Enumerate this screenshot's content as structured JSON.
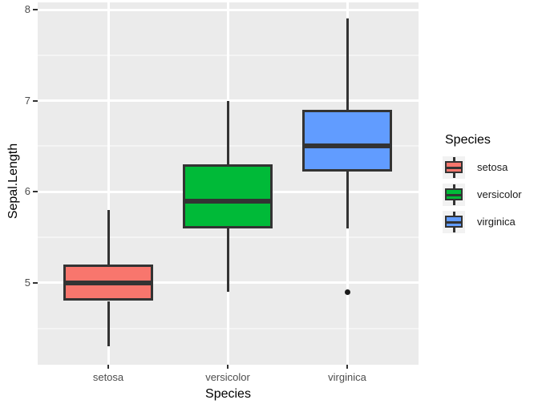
{
  "chart_data": {
    "type": "boxplot",
    "title": "",
    "xlabel": "Species",
    "ylabel": "Sepal.Length",
    "categories": [
      "setosa",
      "versicolor",
      "virginica"
    ],
    "y_ticks": [
      5,
      6,
      7,
      8
    ],
    "y_minor_ticks": [
      4.5,
      5.5,
      6.5,
      7.5
    ],
    "ylim": [
      4.1,
      8.08
    ],
    "grid": "on",
    "legend_position": "right",
    "series": [
      {
        "name": "setosa",
        "fill": "#F8766D",
        "whisker_low": 4.3,
        "q1": 4.8,
        "median": 5.0,
        "q3": 5.2,
        "whisker_high": 5.8,
        "outliers": []
      },
      {
        "name": "versicolor",
        "fill": "#00BA38",
        "whisker_low": 4.9,
        "q1": 5.6,
        "median": 5.9,
        "q3": 6.3,
        "whisker_high": 7.0,
        "outliers": []
      },
      {
        "name": "virginica",
        "fill": "#619CFF",
        "whisker_low": 5.6,
        "q1": 6.225,
        "median": 6.5,
        "q3": 6.9,
        "whisker_high": 7.9,
        "outliers": [
          4.9
        ]
      }
    ],
    "legend": {
      "title": "Species",
      "entries": [
        {
          "label": "setosa",
          "fill": "#F8766D"
        },
        {
          "label": "versicolor",
          "fill": "#00BA38"
        },
        {
          "label": "virginica",
          "fill": "#619CFF"
        }
      ]
    },
    "colors": {
      "panel_bg": "#EBEBEB",
      "grid_major": "#FFFFFF",
      "grid_minor": "#F4F4F4",
      "box_stroke": "#333333",
      "outlier": "#1A1A1A",
      "axis_text": "#4D4D4D",
      "axis_title": "#000000",
      "legend_key_bg": "#F2F2F2",
      "background": "#FFFFFF"
    }
  }
}
